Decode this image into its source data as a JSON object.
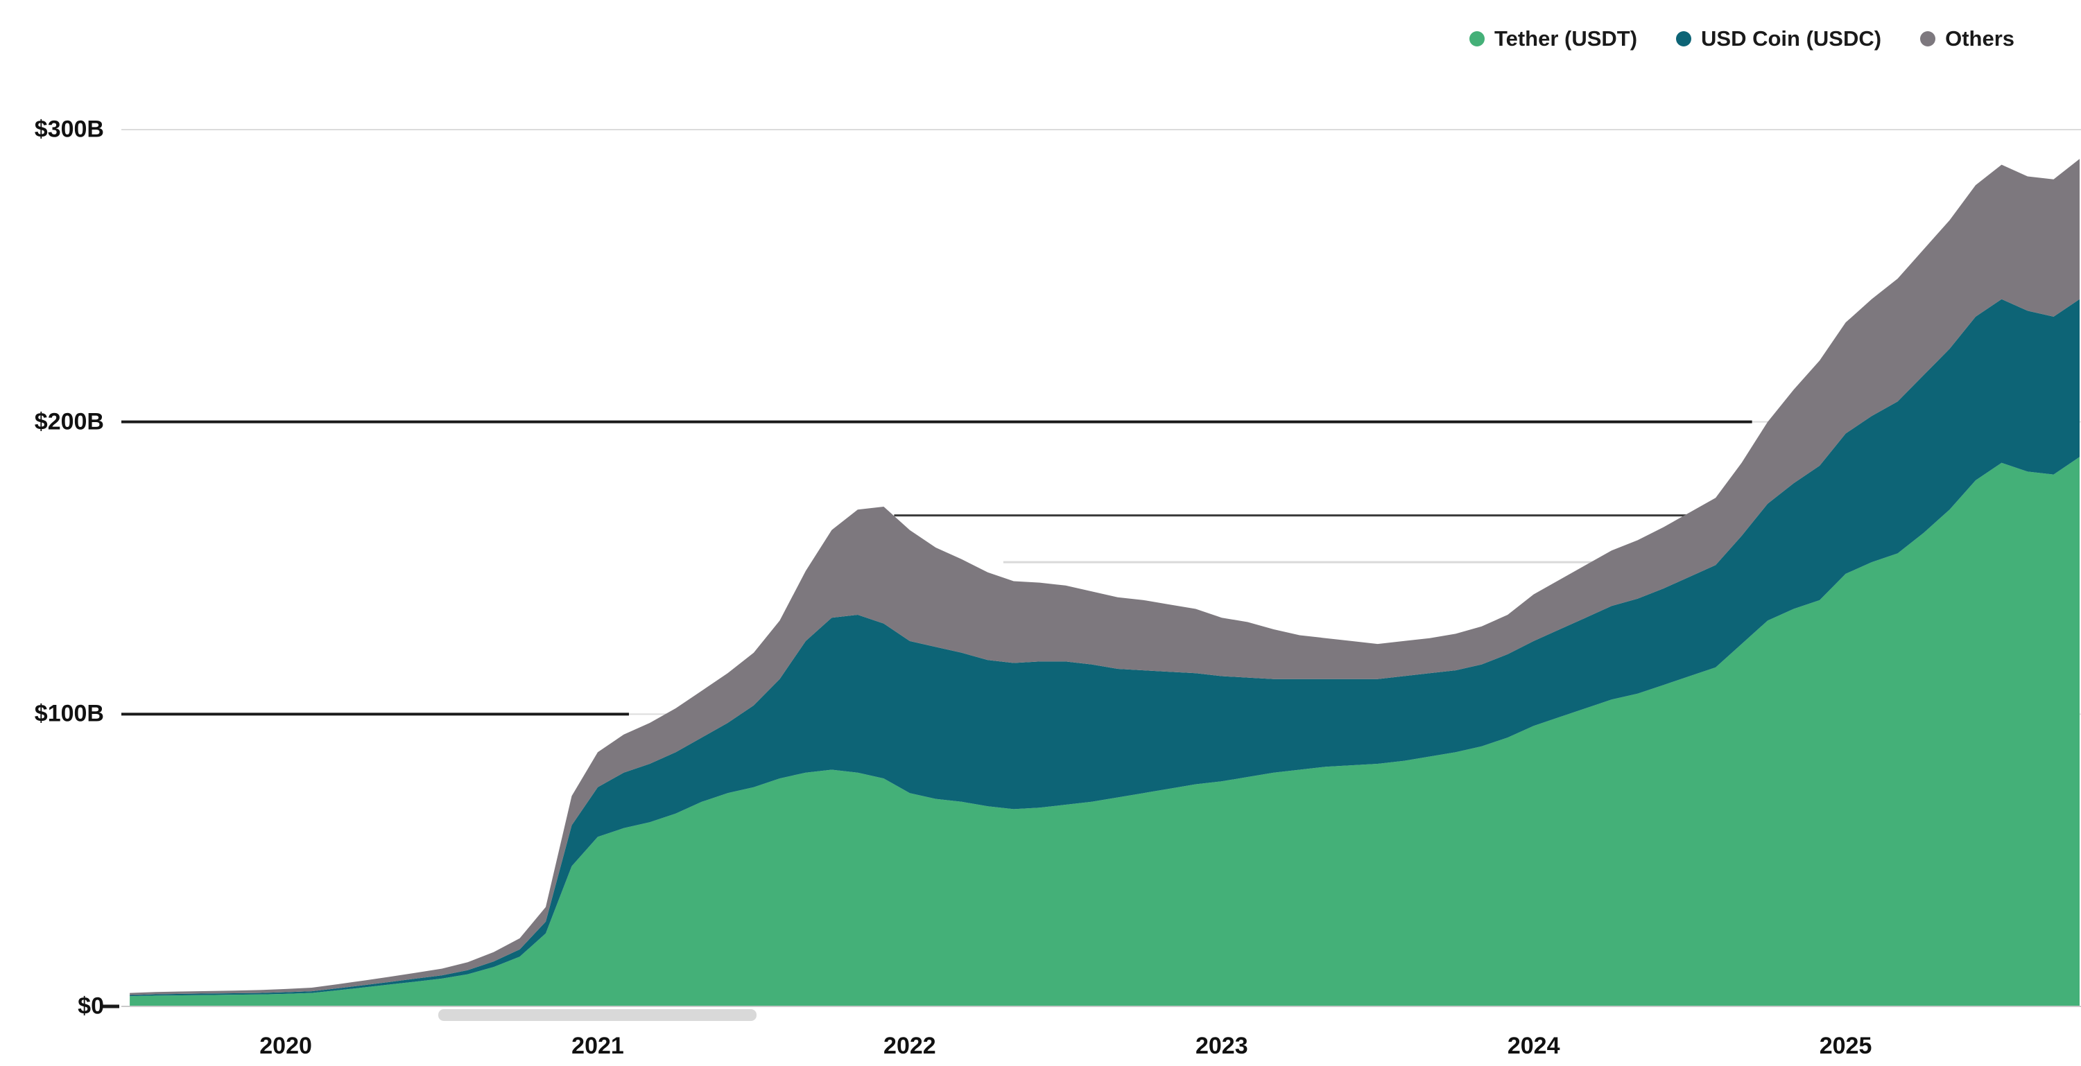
{
  "chart_data": {
    "type": "area",
    "stacked": true,
    "title": "",
    "grid": "horizontal",
    "legend_position": "top-right",
    "x_start_year": 2019.5,
    "x_step_years": 0.083333,
    "xlim": [
      2019.473,
      2025.75
    ],
    "ylim": [
      0,
      300
    ],
    "series": [
      {
        "name": "Tether (USDT)",
        "color": "#44b078",
        "values": [
          3.5,
          3.7,
          3.8,
          3.9,
          4.0,
          4.1,
          4.3,
          4.6,
          5.5,
          6.5,
          7.5,
          8.5,
          9.5,
          11.0,
          13.5,
          17.0,
          25.0,
          48.0,
          58,
          61,
          63,
          66,
          70,
          73,
          75,
          78,
          80,
          81,
          80,
          78,
          73,
          71,
          70,
          68.5,
          67.5,
          68,
          69,
          70,
          71.5,
          73,
          74.5,
          76,
          77,
          78.5,
          80,
          81,
          82,
          82.5,
          83,
          84,
          85.5,
          87,
          89,
          92,
          96,
          99,
          102,
          105,
          107,
          110,
          113,
          116,
          124,
          132,
          136,
          139,
          148,
          152,
          155,
          162,
          170,
          180,
          186,
          183,
          182,
          188
        ]
      },
      {
        "name": "USD Coin (USDC)",
        "color": "#0d6476",
        "values": [
          0.4,
          0.45,
          0.5,
          0.5,
          0.5,
          0.5,
          0.55,
          0.6,
          0.7,
          0.75,
          0.85,
          1.0,
          1.1,
          1.4,
          1.9,
          2.5,
          4.0,
          14.0,
          17,
          19,
          20,
          21,
          22,
          24,
          28,
          34,
          45,
          52,
          54,
          53,
          52,
          52,
          51,
          50,
          50,
          50,
          49,
          47,
          44,
          42,
          40,
          38,
          36,
          34,
          32,
          31,
          30,
          29.5,
          29,
          29,
          28.5,
          28,
          28,
          28.5,
          29,
          30,
          31,
          32,
          32.5,
          33,
          34,
          35,
          37,
          40,
          43,
          46,
          48,
          50,
          52,
          54,
          55,
          56,
          56,
          55,
          54,
          54
        ]
      },
      {
        "name": "Others",
        "color": "#7d787e",
        "values": [
          0.7,
          0.75,
          0.8,
          0.85,
          0.9,
          1.0,
          1.1,
          1.2,
          1.4,
          1.6,
          1.8,
          2.0,
          2.3,
          2.7,
          3.2,
          3.8,
          5.0,
          10.0,
          12,
          13,
          14,
          15,
          16,
          17,
          18,
          20,
          24,
          30,
          36,
          40,
          38,
          34,
          32,
          30,
          28,
          27,
          26,
          25,
          24.5,
          24,
          23,
          22,
          20,
          19,
          17,
          15,
          14,
          13,
          12,
          12,
          12,
          12.5,
          13,
          13.5,
          16,
          17,
          18,
          19,
          20,
          21,
          22,
          23,
          25,
          28,
          32,
          36,
          38,
          40,
          42,
          43,
          44,
          45,
          46,
          46,
          47,
          48
        ]
      }
    ],
    "y_ticks": [
      {
        "label": "$300B",
        "value": 300
      },
      {
        "label": "$200B",
        "value": 200
      },
      {
        "label": "$100B",
        "value": 100
      },
      {
        "label": "$0",
        "value": 0
      }
    ],
    "x_ticks": [
      {
        "label": "2020",
        "value": 2020
      },
      {
        "label": "2021",
        "value": 2021
      },
      {
        "label": "2022",
        "value": 2022
      },
      {
        "label": "2023",
        "value": 2023
      },
      {
        "label": "2024",
        "value": 2024
      },
      {
        "label": "2025",
        "value": 2025
      }
    ],
    "reference_lines": [
      {
        "value": 200,
        "t_from": 2019.473,
        "t_to": 2024.7,
        "color": "#1a1a1a",
        "width": 4
      },
      {
        "value": 100,
        "t_from": 2019.473,
        "t_to": 2021.1,
        "color": "#1a1a1a",
        "width": 4
      },
      {
        "value": 168,
        "t_from": 2021.95,
        "t_to": 2024.55,
        "color": "#3a3a3a",
        "width": 3
      },
      {
        "value": 152,
        "t_from": 2022.3,
        "t_to": 2024.28,
        "color": "#d9d9d9",
        "width": 3
      }
    ],
    "gridline_color": "#dcdcdc",
    "baseline_color": "#c9c9c9"
  },
  "legend": {
    "items": [
      {
        "label": "Tether (USDT)"
      },
      {
        "label": "USD Coin (USDC)"
      },
      {
        "label": "Others"
      }
    ]
  }
}
